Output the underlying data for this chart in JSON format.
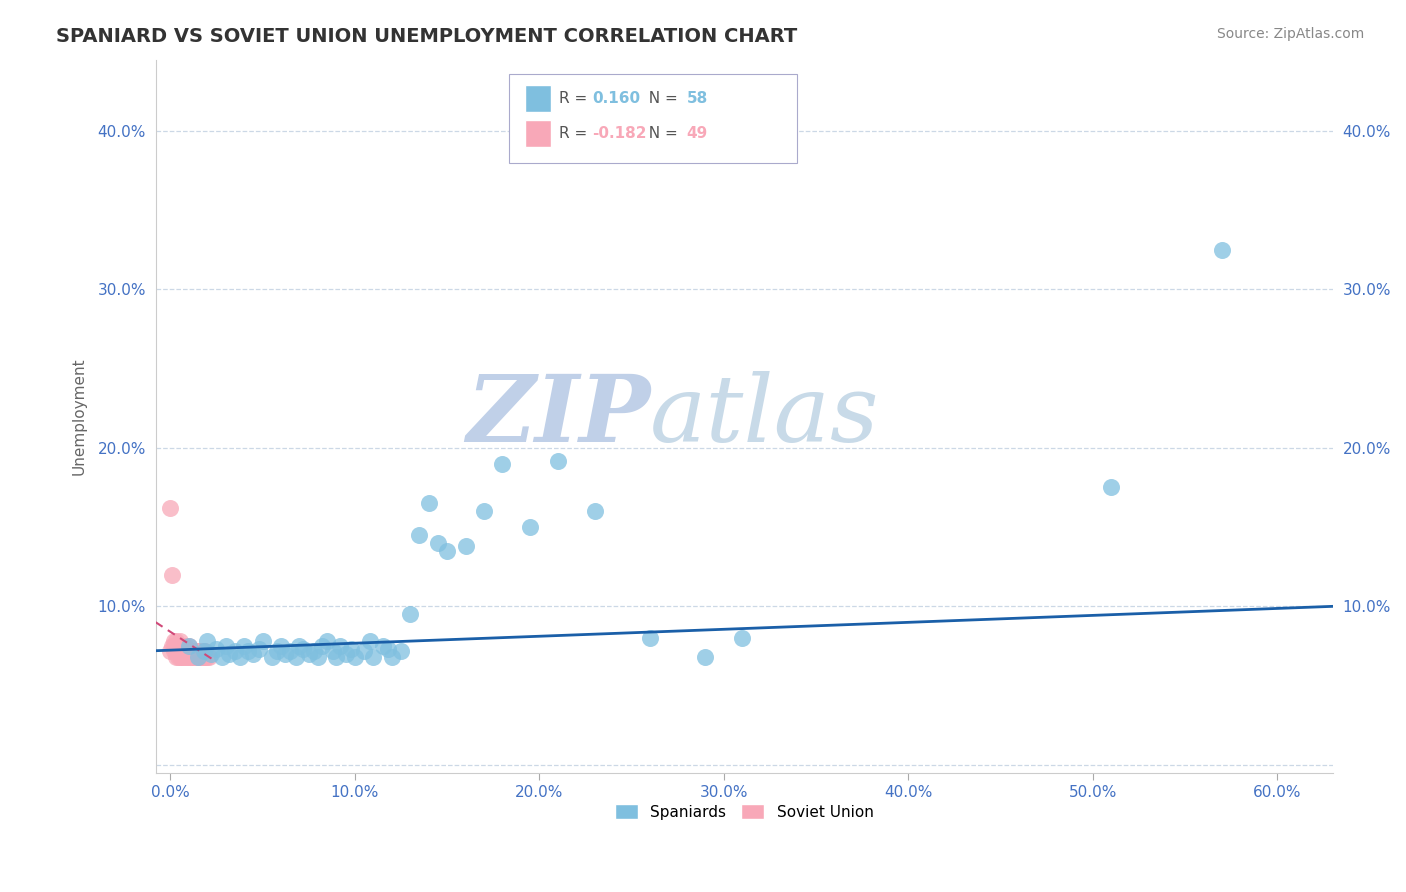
{
  "title": "SPANIARD VS SOVIET UNION UNEMPLOYMENT CORRELATION CHART",
  "source_text": "Source: ZipAtlas.com",
  "xlabel_ticks": [
    "0.0%",
    "10.0%",
    "20.0%",
    "30.0%",
    "40.0%",
    "50.0%",
    "60.0%"
  ],
  "xlabel_vals": [
    0.0,
    0.1,
    0.2,
    0.3,
    0.4,
    0.5,
    0.6
  ],
  "ylabel": "Unemployment",
  "ylim": [
    -0.005,
    0.445
  ],
  "xlim": [
    -0.008,
    0.63
  ],
  "yticks": [
    0.0,
    0.1,
    0.2,
    0.3,
    0.4
  ],
  "ytick_labels": [
    "",
    "10.0%",
    "20.0%",
    "30.0%",
    "40.0%"
  ],
  "r_spaniard": 0.16,
  "n_spaniard": 58,
  "r_soviet": -0.182,
  "n_soviet": 49,
  "blue_color": "#7fbfdf",
  "pink_color": "#f8a8b8",
  "trend_blue": "#1a5fa8",
  "trend_pink": "#d04878",
  "watermark_zip_color": "#c8d8ee",
  "watermark_atlas_color": "#c8d8ee",
  "spaniard_x": [
    0.01,
    0.015,
    0.018,
    0.02,
    0.022,
    0.025,
    0.028,
    0.03,
    0.032,
    0.035,
    0.038,
    0.04,
    0.042,
    0.045,
    0.048,
    0.05,
    0.055,
    0.058,
    0.06,
    0.062,
    0.065,
    0.068,
    0.07,
    0.072,
    0.075,
    0.078,
    0.08,
    0.082,
    0.085,
    0.088,
    0.09,
    0.092,
    0.095,
    0.098,
    0.1,
    0.105,
    0.108,
    0.11,
    0.115,
    0.118,
    0.12,
    0.125,
    0.13,
    0.135,
    0.14,
    0.145,
    0.15,
    0.16,
    0.17,
    0.18,
    0.195,
    0.21,
    0.23,
    0.26,
    0.29,
    0.31,
    0.51,
    0.57
  ],
  "spaniard_y": [
    0.075,
    0.068,
    0.072,
    0.078,
    0.07,
    0.073,
    0.068,
    0.075,
    0.07,
    0.072,
    0.068,
    0.075,
    0.072,
    0.07,
    0.073,
    0.078,
    0.068,
    0.072,
    0.075,
    0.07,
    0.072,
    0.068,
    0.075,
    0.073,
    0.07,
    0.072,
    0.068,
    0.075,
    0.078,
    0.072,
    0.068,
    0.075,
    0.07,
    0.073,
    0.068,
    0.072,
    0.078,
    0.068,
    0.075,
    0.073,
    0.068,
    0.072,
    0.095,
    0.145,
    0.165,
    0.14,
    0.135,
    0.138,
    0.16,
    0.19,
    0.15,
    0.192,
    0.16,
    0.08,
    0.068,
    0.08,
    0.175,
    0.325
  ],
  "soviet_x": [
    0.0,
    0.0,
    0.001,
    0.001,
    0.002,
    0.002,
    0.002,
    0.003,
    0.003,
    0.003,
    0.004,
    0.004,
    0.004,
    0.005,
    0.005,
    0.005,
    0.006,
    0.006,
    0.006,
    0.007,
    0.007,
    0.007,
    0.008,
    0.008,
    0.008,
    0.009,
    0.009,
    0.01,
    0.01,
    0.01,
    0.011,
    0.011,
    0.012,
    0.012,
    0.013,
    0.013,
    0.014,
    0.014,
    0.015,
    0.015,
    0.016,
    0.016,
    0.017,
    0.018,
    0.018,
    0.019,
    0.019,
    0.02,
    0.021
  ],
  "soviet_y": [
    0.162,
    0.072,
    0.12,
    0.075,
    0.078,
    0.072,
    0.075,
    0.068,
    0.072,
    0.078,
    0.068,
    0.072,
    0.075,
    0.068,
    0.072,
    0.078,
    0.068,
    0.072,
    0.075,
    0.068,
    0.072,
    0.075,
    0.068,
    0.072,
    0.075,
    0.068,
    0.072,
    0.068,
    0.072,
    0.075,
    0.068,
    0.072,
    0.068,
    0.072,
    0.068,
    0.072,
    0.068,
    0.072,
    0.068,
    0.072,
    0.068,
    0.072,
    0.068,
    0.068,
    0.072,
    0.068,
    0.072,
    0.068,
    0.068
  ],
  "trend_blue_x0": -0.008,
  "trend_blue_x1": 0.63,
  "trend_blue_y0": 0.072,
  "trend_blue_y1": 0.1,
  "trend_pink_x0": -0.008,
  "trend_pink_x1": 0.025,
  "trend_pink_y0": 0.09,
  "trend_pink_y1": 0.065
}
